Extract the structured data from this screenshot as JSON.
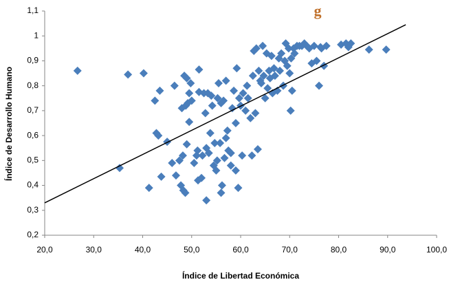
{
  "chart_data": {
    "type": "scatter",
    "title": "g",
    "x_label": "Índice de Libertad Económica",
    "y_label": "Índice de Desarrollo Humano",
    "color": "#4a7ebb",
    "x": [
      26.7,
      35.3,
      37,
      40.2,
      41.3,
      42.5,
      42.8,
      43.2,
      43.5,
      43.8,
      45,
      46,
      46.5,
      46.8,
      47.5,
      47.8,
      48,
      48.2,
      48.3,
      48.5,
      48.7,
      48.8,
      49,
      49,
      49.2,
      49.5,
      49.5,
      49.8,
      50,
      50.5,
      51,
      51.2,
      51.3,
      51.5,
      51.5,
      52,
      52.2,
      52.5,
      52.8,
      53,
      53,
      53.3,
      53.5,
      53.8,
      54,
      54.2,
      54.5,
      54.7,
      55,
      55.2,
      55.3,
      55.5,
      55.8,
      56,
      56,
      56.2,
      56.5,
      56.7,
      57,
      57,
      57.3,
      57.5,
      58,
      58,
      58.3,
      58.6,
      59,
      59,
      59.2,
      59.5,
      59.7,
      60,
      60.3,
      60.5,
      61,
      61.3,
      61.5,
      62,
      62.3,
      62.5,
      62.7,
      63,
      63.2,
      63.5,
      63.7,
      64,
      64.2,
      64.5,
      64.7,
      65,
      65.3,
      65.5,
      65.8,
      66,
      66.3,
      66.5,
      66.8,
      67,
      67.5,
      67.8,
      68,
      68.3,
      68.7,
      69,
      69.2,
      69.5,
      69.8,
      70,
      70.2,
      70.3,
      70.5,
      70.8,
      71,
      71.5,
      72,
      72.5,
      73,
      73.5,
      74,
      74.5,
      75,
      75.5,
      76,
      76.3,
      76.5,
      77,
      77.5,
      80.5,
      81.5,
      82,
      82.5,
      86.2,
      89.7
    ],
    "values": [
      0.86,
      0.47,
      0.845,
      0.85,
      0.39,
      0.74,
      0.61,
      0.6,
      0.78,
      0.435,
      0.575,
      0.49,
      0.8,
      0.44,
      0.5,
      0.4,
      0.71,
      0.52,
      0.38,
      0.84,
      0.37,
      0.72,
      0.565,
      0.83,
      0.73,
      0.77,
      0.655,
      0.81,
      0.74,
      0.49,
      0.52,
      0.54,
      0.42,
      0.865,
      0.775,
      0.43,
      0.52,
      0.77,
      0.69,
      0.34,
      0.55,
      0.77,
      0.53,
      0.61,
      0.76,
      0.72,
      0.48,
      0.57,
      0.46,
      0.5,
      0.75,
      0.81,
      0.57,
      0.37,
      0.73,
      0.4,
      0.74,
      0.51,
      0.82,
      0.59,
      0.62,
      0.54,
      0.48,
      0.53,
      0.71,
      0.78,
      0.46,
      0.65,
      0.87,
      0.39,
      0.75,
      0.72,
      0.52,
      0.77,
      0.7,
      0.8,
      0.75,
      0.67,
      0.52,
      0.84,
      0.94,
      0.69,
      0.95,
      0.545,
      0.86,
      0.82,
      0.81,
      0.96,
      0.84,
      0.75,
      0.93,
      0.79,
      0.86,
      0.83,
      0.92,
      0.77,
      0.87,
      0.84,
      0.78,
      0.91,
      0.86,
      0.93,
      0.8,
      0.9,
      0.97,
      0.88,
      0.95,
      0.85,
      0.7,
      0.91,
      0.78,
      0.95,
      0.93,
      0.96,
      0.96,
      0.96,
      0.97,
      0.96,
      0.95,
      0.89,
      0.96,
      0.9,
      0.8,
      0.955,
      0.95,
      0.88,
      0.96,
      0.965,
      0.97,
      0.955,
      0.97,
      0.945,
      0.945
    ],
    "trendline": {
      "x": [
        20,
        93.7
      ],
      "y": [
        0.33,
        1.045
      ]
    },
    "xlim": [
      20,
      100
    ],
    "xticks": [
      {
        "value": 20,
        "label": "20,0"
      },
      {
        "value": 30,
        "label": "30,0"
      },
      {
        "value": 40,
        "label": "40,0"
      },
      {
        "value": 50,
        "label": "50,0"
      },
      {
        "value": 60,
        "label": "60,0"
      },
      {
        "value": 70,
        "label": "70,0"
      },
      {
        "value": 80,
        "label": "80,0"
      },
      {
        "value": 90,
        "label": "90,0"
      },
      {
        "value": 100,
        "label": "100,0"
      }
    ],
    "ylim": [
      0.2,
      1.1
    ],
    "yticks": [
      {
        "value": 0.2,
        "label": "0,2"
      },
      {
        "value": 0.3,
        "label": "0,3"
      },
      {
        "value": 0.4,
        "label": "0,4"
      },
      {
        "value": 0.5,
        "label": "0,5"
      },
      {
        "value": 0.6,
        "label": "0,6"
      },
      {
        "value": 0.7,
        "label": "0,7"
      },
      {
        "value": 0.8,
        "label": "0,8"
      },
      {
        "value": 0.9,
        "label": "0,9"
      },
      1,
      {
        "value": 1.1,
        "label": "1,1"
      }
    ],
    "grid": false
  }
}
